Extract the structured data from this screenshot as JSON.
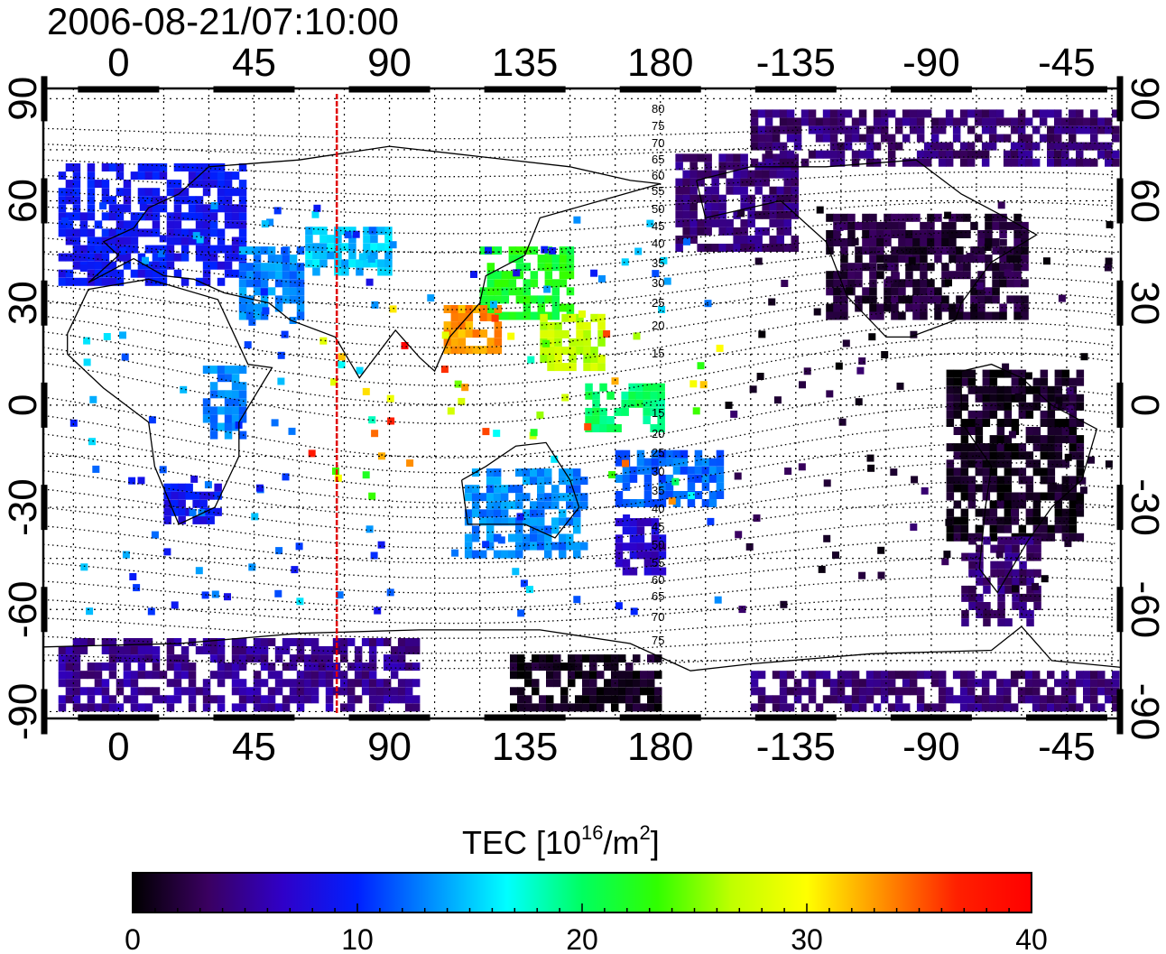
{
  "title": "2006-08-21/07:10:00",
  "map": {
    "lon_tick_labels": [
      "0",
      "45",
      "90",
      "135",
      "180",
      "-135",
      "-90",
      "-45"
    ],
    "lon_tick_values": [
      0,
      45,
      90,
      135,
      180,
      225,
      270,
      315
    ],
    "lat_tick_labels": [
      "90",
      "60",
      "30",
      "0",
      "-30",
      "-60",
      "-90"
    ],
    "lat_tick_values": [
      90,
      60,
      30,
      0,
      -30,
      -60,
      -90
    ],
    "lon_range": [
      -25,
      333
    ],
    "lat_range": [
      -92,
      93
    ],
    "gridlines": "dotted, every 15 degrees",
    "marker_longitude": 72.5,
    "marker_color": "#e00000",
    "contour_labels_north": [
      "80",
      "75",
      "70",
      "65",
      "60",
      "55",
      "50",
      "45",
      "40",
      "35",
      "30",
      "25",
      "20",
      "15"
    ],
    "contour_labels_south": [
      "15",
      "20",
      "25",
      "30",
      "35",
      "40",
      "45",
      "50",
      "55",
      "60",
      "65",
      "70",
      "75"
    ]
  },
  "colorbar": {
    "label_main": "TEC  [10",
    "label_sup1": "16",
    "label_mid": "/m",
    "label_sup2": "2",
    "label_end": "]",
    "min": 0,
    "max": 40,
    "tick_labels": [
      "0",
      "10",
      "20",
      "30",
      "40"
    ],
    "tick_values": [
      0,
      10,
      20,
      30,
      40
    ],
    "colors": [
      "#000000",
      "#3a0060",
      "#3000c8",
      "#0020ff",
      "#0090ff",
      "#00ffff",
      "#00ff60",
      "#30ff00",
      "#c0ff00",
      "#ffff00",
      "#ff9000",
      "#ff2000",
      "#ff0000"
    ]
  },
  "chart_data": {
    "type": "heatmap",
    "title": "2006-08-21/07:10:00",
    "colorbar_label": "TEC [10^16/m^2]",
    "value_range": [
      0,
      40
    ],
    "regions": [
      {
        "lon": [
          -20,
          42
        ],
        "lat": [
          35,
          70
        ],
        "value": 9
      },
      {
        "lon": [
          40,
          60
        ],
        "lat": [
          25,
          45
        ],
        "value": 13
      },
      {
        "lon": [
          62,
          90
        ],
        "lat": [
          38,
          50
        ],
        "value": 15
      },
      {
        "lon": [
          120,
          150
        ],
        "lat": [
          25,
          45
        ],
        "value": 22
      },
      {
        "lon": [
          108,
          125
        ],
        "lat": [
          15,
          28
        ],
        "value": 33
      },
      {
        "lon": [
          140,
          160
        ],
        "lat": [
          10,
          25
        ],
        "value": 27
      },
      {
        "lon": [
          155,
          180
        ],
        "lat": [
          -8,
          5
        ],
        "value": 20
      },
      {
        "lon": [
          165,
          200
        ],
        "lat": [
          -30,
          -15
        ],
        "value": 12
      },
      {
        "lon": [
          115,
          155
        ],
        "lat": [
          -45,
          -20
        ],
        "value": 13
      },
      {
        "lon": [
          165,
          180
        ],
        "lat": [
          -50,
          -35
        ],
        "value": 7
      },
      {
        "lon": [
          15,
          32
        ],
        "lat": [
          -35,
          -25
        ],
        "value": 9
      },
      {
        "lon": [
          28,
          40
        ],
        "lat": [
          -10,
          10
        ],
        "value": 13
      },
      {
        "lon": [
          185,
          225
        ],
        "lat": [
          45,
          72
        ],
        "value": 4
      },
      {
        "lon": [
          235,
          300
        ],
        "lat": [
          25,
          55
        ],
        "value": 2
      },
      {
        "lon": [
          210,
          330
        ],
        "lat": [
          70,
          85
        ],
        "value": 4
      },
      {
        "lon": [
          275,
          320
        ],
        "lat": [
          -40,
          10
        ],
        "value": 1
      },
      {
        "lon": [
          280,
          305
        ],
        "lat": [
          -65,
          -40
        ],
        "value": 4
      },
      {
        "lon": [
          130,
          180
        ],
        "lat": [
          -90,
          -75
        ],
        "value": 1
      },
      {
        "lon": [
          -20,
          100
        ],
        "lat": [
          -90,
          -70
        ],
        "value": 5
      },
      {
        "lon": [
          210,
          330
        ],
        "lat": [
          -90,
          -80
        ],
        "value": 4
      }
    ]
  }
}
